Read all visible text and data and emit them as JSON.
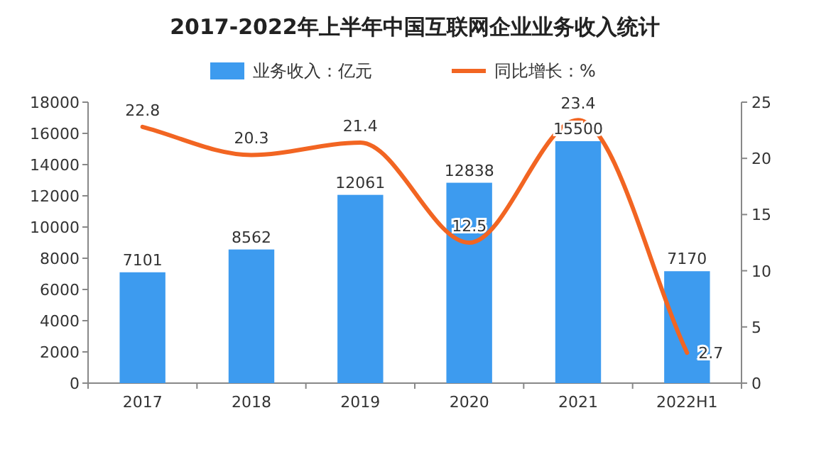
{
  "chart_data": {
    "type": "bar",
    "title": "2017-2022年上半年中国互联网企业业务收入统计",
    "categories": [
      "2017",
      "2018",
      "2019",
      "2020",
      "2021",
      "2022H1"
    ],
    "series": [
      {
        "name": "业务收入：亿元",
        "color": "#3d9bef",
        "values": [
          7101,
          8562,
          12061,
          12838,
          15500,
          7170
        ]
      },
      {
        "name": "同比增长：%",
        "type": "line",
        "axis": "y2",
        "color": "#f26522",
        "values": [
          22.8,
          20.3,
          21.4,
          12.5,
          23.4,
          2.7
        ]
      }
    ],
    "ylim": [
      0,
      18000
    ],
    "yticks": [
      0,
      2000,
      4000,
      6000,
      8000,
      10000,
      12000,
      14000,
      16000,
      18000
    ],
    "y2lim": [
      0,
      25
    ],
    "y2ticks": [
      0,
      5,
      10,
      15,
      20,
      25
    ],
    "legend": "top",
    "data_labels": true
  }
}
